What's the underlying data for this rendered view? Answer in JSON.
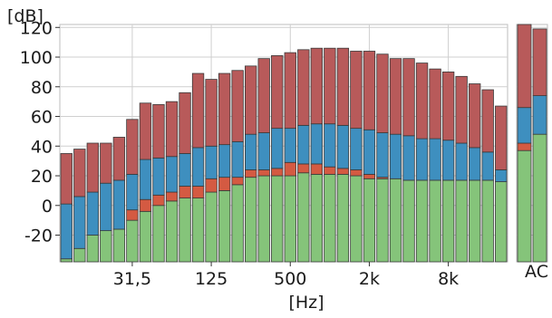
{
  "chart_data": {
    "type": "bar",
    "stacked": true,
    "y_unit_label": "[dB]",
    "x_unit_label": "[Hz]",
    "ylim": [
      -38,
      122
    ],
    "y_ticks": [
      -20,
      0,
      20,
      40,
      60,
      80,
      100,
      120
    ],
    "x_tick_labels": [
      {
        "label": "31,5",
        "band_index": 5
      },
      {
        "label": "125",
        "band_index": 11
      },
      {
        "label": "500",
        "band_index": 17
      },
      {
        "label": "2k",
        "band_index": 23
      },
      {
        "label": "8k",
        "band_index": 29
      }
    ],
    "grid": true,
    "legend": "none",
    "colors": {
      "red": "#b85a5a",
      "blue": "#3e8fbf",
      "orange": "#d45a42",
      "green": "#85c47a",
      "edge": "#3a3a3a",
      "grid": "#cfcfcf"
    },
    "series_order": [
      "green",
      "orange",
      "blue",
      "red"
    ],
    "bands": [
      {
        "green": -36,
        "orange": -36,
        "blue": 1,
        "red": 35
      },
      {
        "green": -29,
        "orange": -29,
        "blue": 6,
        "red": 38
      },
      {
        "green": -20,
        "orange": -20,
        "blue": 9,
        "red": 42
      },
      {
        "green": -17,
        "orange": -17,
        "blue": 15,
        "red": 42
      },
      {
        "green": -16,
        "orange": -16,
        "blue": 17,
        "red": 46
      },
      {
        "green": -10,
        "orange": -3,
        "blue": 21,
        "red": 58
      },
      {
        "green": -4,
        "orange": 4,
        "blue": 31,
        "red": 69
      },
      {
        "green": 0,
        "orange": 7,
        "blue": 32,
        "red": 68
      },
      {
        "green": 3,
        "orange": 9,
        "blue": 33,
        "red": 70
      },
      {
        "green": 5,
        "orange": 13,
        "blue": 35,
        "red": 76
      },
      {
        "green": 5,
        "orange": 13,
        "blue": 39,
        "red": 89
      },
      {
        "green": 9,
        "orange": 18,
        "blue": 40,
        "red": 85
      },
      {
        "green": 10,
        "orange": 19,
        "blue": 41,
        "red": 89
      },
      {
        "green": 14,
        "orange": 19,
        "blue": 43,
        "red": 91
      },
      {
        "green": 19,
        "orange": 24,
        "blue": 48,
        "red": 94
      },
      {
        "green": 20,
        "orange": 24,
        "blue": 49,
        "red": 99
      },
      {
        "green": 20,
        "orange": 25,
        "blue": 52,
        "red": 101
      },
      {
        "green": 20,
        "orange": 29,
        "blue": 52,
        "red": 103
      },
      {
        "green": 22,
        "orange": 28,
        "blue": 54,
        "red": 105
      },
      {
        "green": 21,
        "orange": 28,
        "blue": 55,
        "red": 106
      },
      {
        "green": 21,
        "orange": 26,
        "blue": 55,
        "red": 106
      },
      {
        "green": 21,
        "orange": 25,
        "blue": 54,
        "red": 106
      },
      {
        "green": 20,
        "orange": 24,
        "blue": 52,
        "red": 104
      },
      {
        "green": 18,
        "orange": 21,
        "blue": 51,
        "red": 104
      },
      {
        "green": 18,
        "orange": 19,
        "blue": 49,
        "red": 102
      },
      {
        "green": 18,
        "orange": 18,
        "blue": 48,
        "red": 99
      },
      {
        "green": 17,
        "orange": 17,
        "blue": 47,
        "red": 99
      },
      {
        "green": 17,
        "orange": 17,
        "blue": 45,
        "red": 96
      },
      {
        "green": 17,
        "orange": 17,
        "blue": 45,
        "red": 92
      },
      {
        "green": 17,
        "orange": 17,
        "blue": 44,
        "red": 90
      },
      {
        "green": 17,
        "orange": 17,
        "blue": 42,
        "red": 87
      },
      {
        "green": 17,
        "orange": 17,
        "blue": 39,
        "red": 82
      },
      {
        "green": 17,
        "orange": 17,
        "blue": 36,
        "red": 78
      },
      {
        "green": 16,
        "orange": 16,
        "blue": 24,
        "red": 67
      }
    ],
    "summary_label": "AC",
    "summary_bars": [
      {
        "green": 37,
        "orange": 42,
        "blue": 66,
        "red": 122
      },
      {
        "green": 48,
        "orange": 48,
        "blue": 74,
        "red": 119
      }
    ]
  }
}
